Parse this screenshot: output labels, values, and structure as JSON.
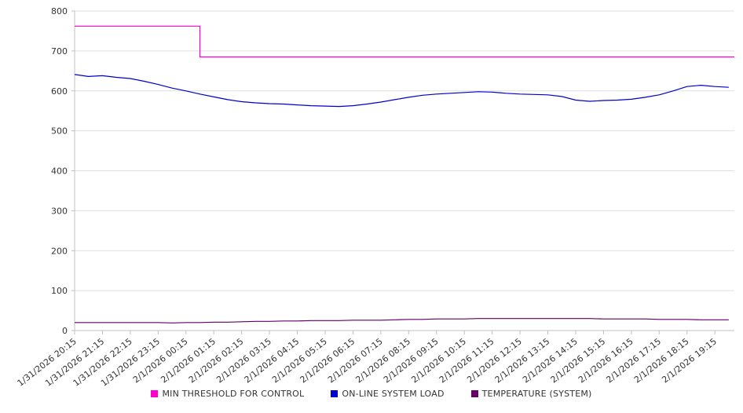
{
  "chart_data": {
    "type": "line",
    "title": "",
    "xlabel": "",
    "ylabel": "",
    "ylim": [
      0,
      800
    ],
    "y_ticks": [
      0,
      100,
      200,
      300,
      400,
      500,
      600,
      700,
      800
    ],
    "x_domain": [
      0,
      23.7
    ],
    "grid": "horizontal",
    "legend_position": "bottom",
    "colors": {
      "grid": "#e0e0e0",
      "axis": "#c0c0c0",
      "tick_text": "#333333"
    },
    "x_labels": [
      "1/31/2026 20:15",
      "1/31/2026 21:15",
      "1/31/2026 22:15",
      "1/31/2026 23:15",
      "2/1/2026 00:15",
      "2/1/2026 01:15",
      "2/1/2026 02:15",
      "2/1/2026 03:15",
      "2/1/2026 04:15",
      "2/1/2026 05:15",
      "2/1/2026 06:15",
      "2/1/2026 07:15",
      "2/1/2026 08:15",
      "2/1/2026 09:15",
      "2/1/2026 10:15",
      "2/1/2026 11:15",
      "2/1/2026 12:15",
      "2/1/2026 13:15",
      "2/1/2026 14:15",
      "2/1/2026 15:15",
      "2/1/2026 16:15",
      "2/1/2026 17:15",
      "2/1/2026 18:15",
      "2/1/2026 19:15"
    ],
    "series": [
      {
        "name": "MIN THRESHOLD FOR CONTROL",
        "color": "#ff00cc",
        "points": [
          {
            "x": 0,
            "y": 762
          },
          {
            "x": 4.5,
            "y": 762
          },
          {
            "x": 4.5,
            "y": 685
          },
          {
            "x": 23.7,
            "y": 685
          }
        ]
      },
      {
        "name": "ON-LINE SYSTEM LOAD",
        "color": "#0000cc",
        "x_step": 0.5,
        "values": [
          641,
          636,
          638,
          634,
          631,
          624,
          616,
          607,
          600,
          592,
          585,
          578,
          573,
          570,
          568,
          567,
          565,
          563,
          562,
          561,
          563,
          567,
          572,
          578,
          584,
          589,
          592,
          594,
          596,
          598,
          597,
          594,
          592,
          591,
          590,
          586,
          577,
          574,
          576,
          577,
          579,
          584,
          590,
          600,
          611,
          614,
          611,
          609
        ]
      },
      {
        "name": "TEMPERATURE (SYSTEM)",
        "color": "#660066",
        "x_step": 0.5,
        "values": [
          20,
          20,
          20,
          20,
          20,
          20,
          20,
          19,
          20,
          20,
          21,
          21,
          22,
          23,
          23,
          24,
          24,
          25,
          25,
          25,
          26,
          26,
          26,
          27,
          28,
          28,
          29,
          29,
          29,
          30,
          30,
          30,
          30,
          30,
          30,
          30,
          30,
          30,
          29,
          29,
          29,
          29,
          28,
          28,
          28,
          27,
          27,
          27
        ]
      }
    ]
  }
}
